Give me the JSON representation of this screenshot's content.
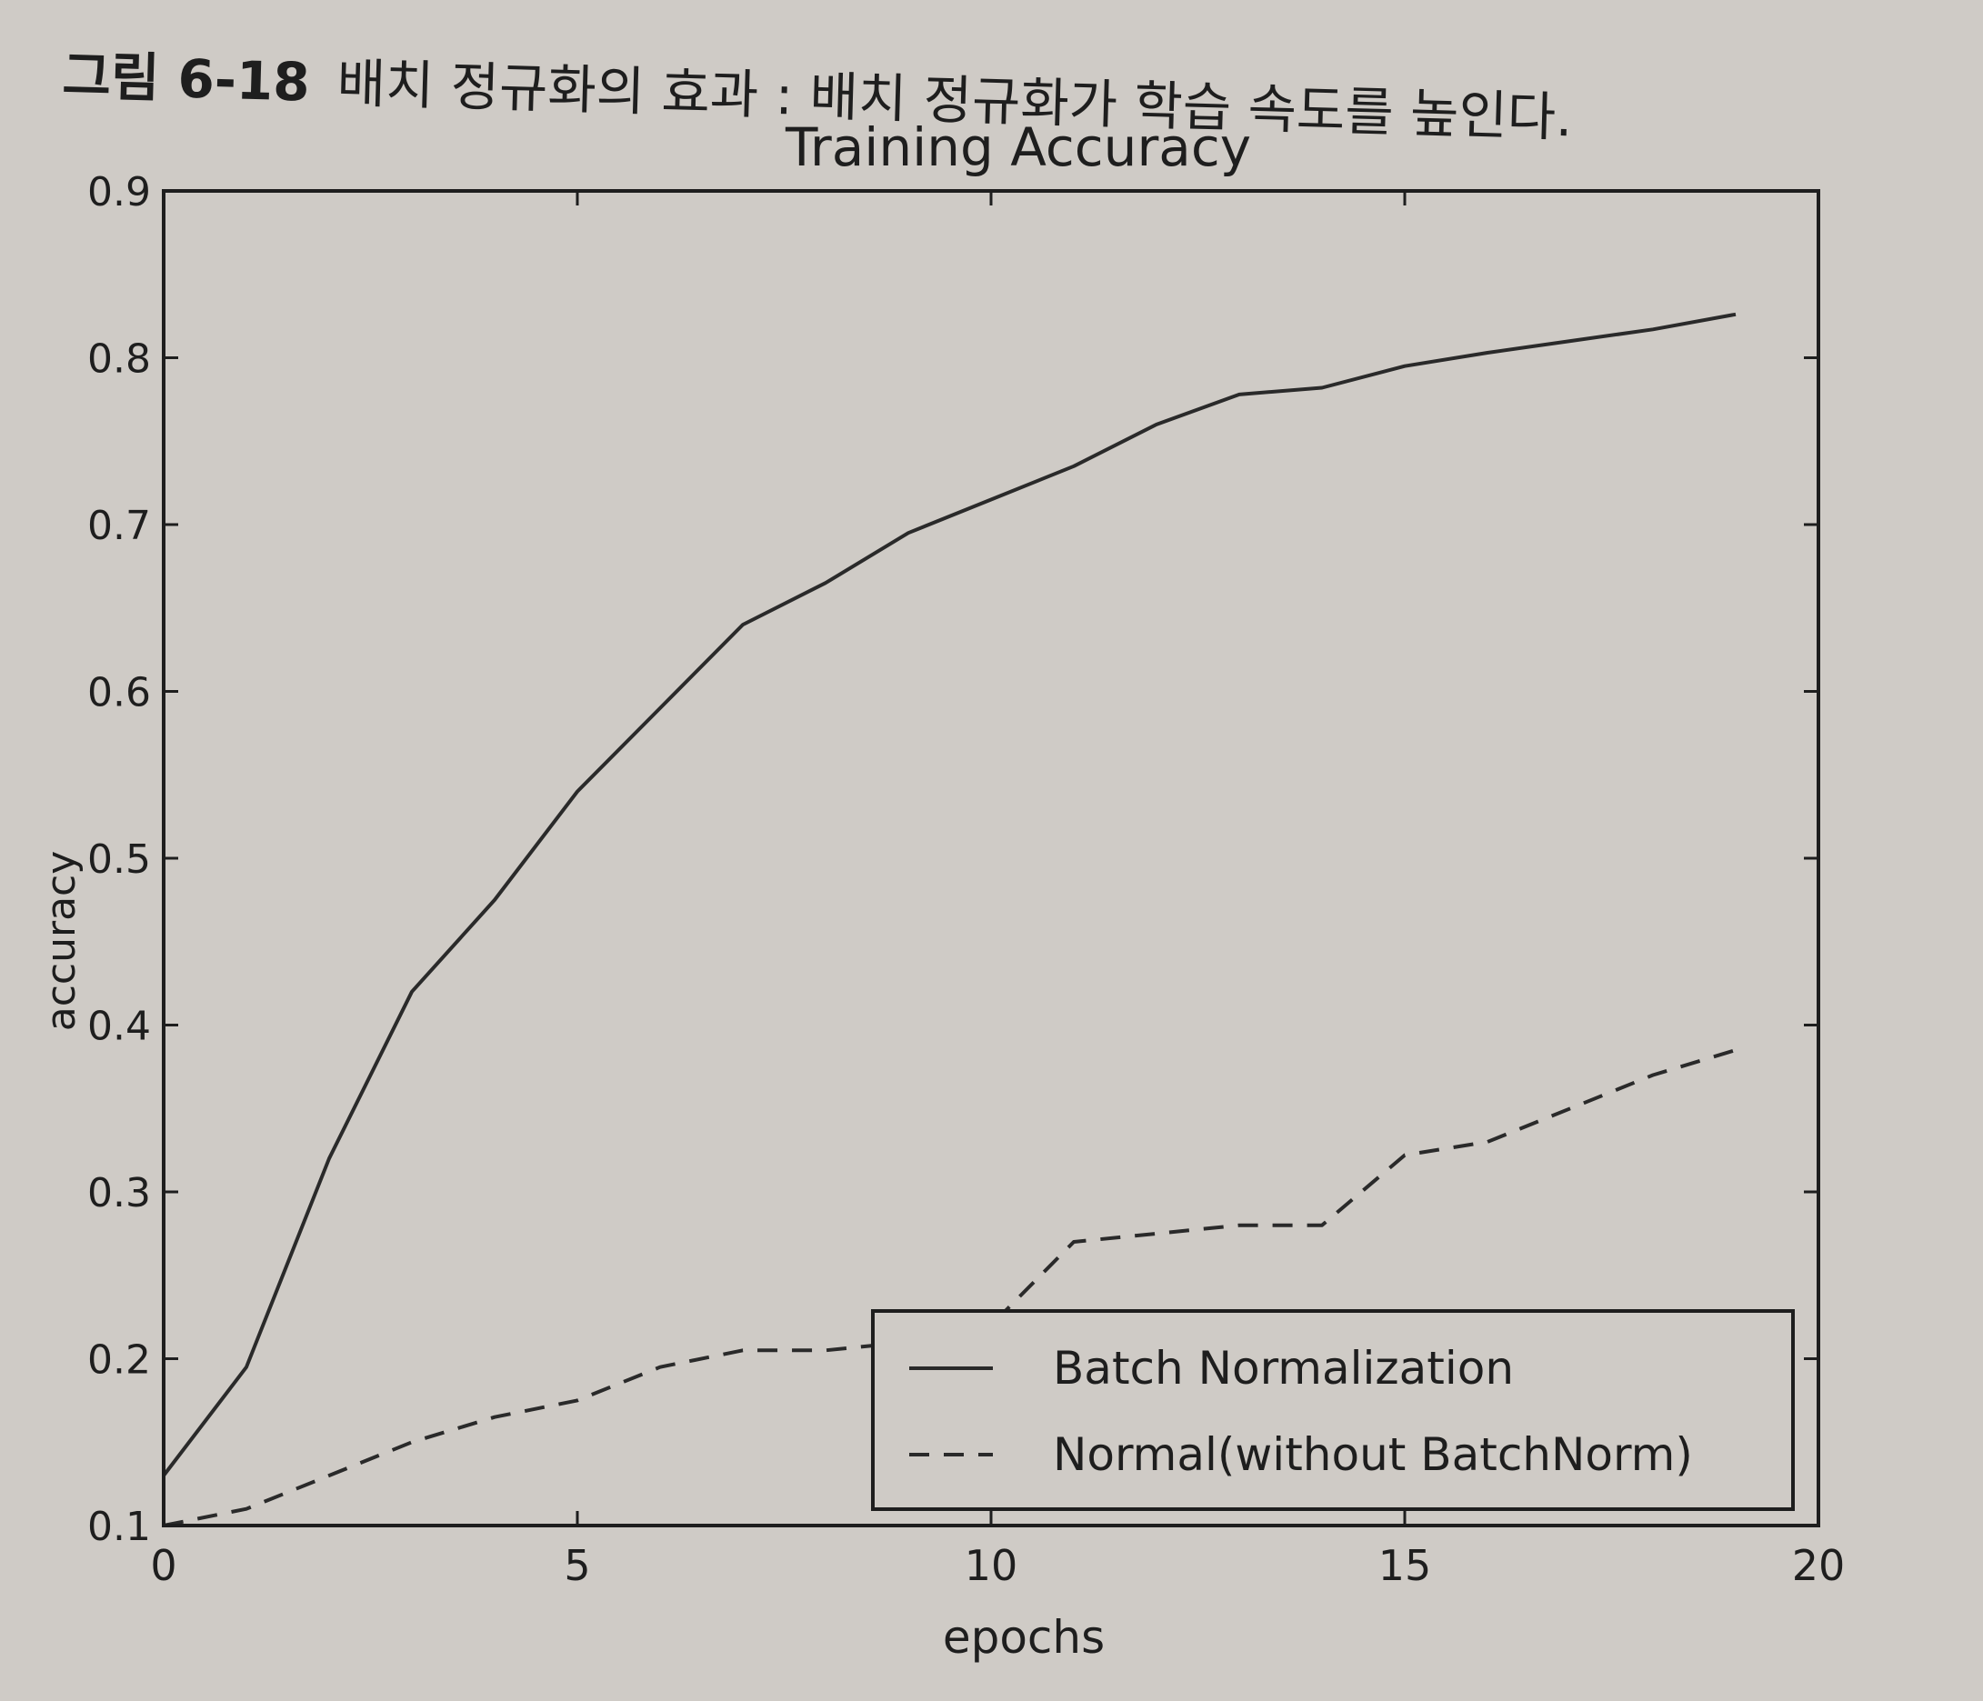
{
  "caption": {
    "figure_number": "그림 6-18",
    "text": "배치 정규화의 효과 : 배치 정규화가 학습 속도를 높인다."
  },
  "colors": {
    "line": "#2a2a2a",
    "frame": "#1e1e1e",
    "text": "#1e1e1e"
  },
  "chart_data": {
    "type": "line",
    "title": "Training Accuracy",
    "xlabel": "epochs",
    "ylabel": "accuracy",
    "xlim": [
      0,
      20
    ],
    "ylim": [
      0.1,
      0.9
    ],
    "xticks": [
      "0",
      "5",
      "10",
      "15",
      "20"
    ],
    "yticks": [
      "0.1",
      "0.2",
      "0.3",
      "0.4",
      "0.5",
      "0.6",
      "0.7",
      "0.8",
      "0.9"
    ],
    "grid": false,
    "legend_position": "lower-right",
    "x": [
      0,
      1,
      2,
      3,
      4,
      5,
      6,
      7,
      8,
      9,
      10,
      11,
      12,
      13,
      14,
      15,
      16,
      17,
      18,
      19
    ],
    "series": [
      {
        "name": "Batch Normalization",
        "linestyle": "solid",
        "values": [
          0.13,
          0.195,
          0.32,
          0.42,
          0.475,
          0.54,
          0.59,
          0.64,
          0.665,
          0.695,
          0.715,
          0.735,
          0.76,
          0.778,
          0.782,
          0.795,
          0.803,
          0.81,
          0.817,
          0.826
        ]
      },
      {
        "name": "Normal(without BatchNorm)",
        "linestyle": "dashed",
        "values": [
          0.1,
          0.11,
          0.13,
          0.15,
          0.165,
          0.175,
          0.195,
          0.205,
          0.205,
          0.21,
          0.22,
          0.27,
          0.275,
          0.28,
          0.28,
          0.322,
          0.33,
          0.35,
          0.37,
          0.385
        ]
      }
    ]
  }
}
